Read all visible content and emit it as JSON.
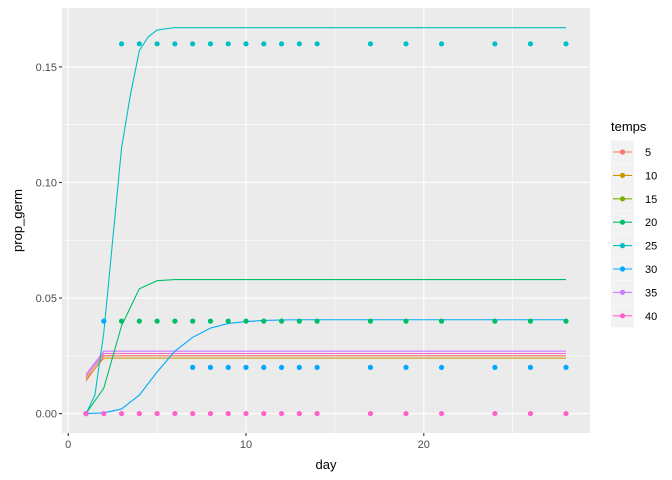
{
  "chart_data": {
    "type": "line",
    "xlabel": "day",
    "ylabel": "prop_germ",
    "xlim": [
      -0.35,
      29.35
    ],
    "ylim": [
      -0.0084,
      0.1755
    ],
    "x_ticks": [
      0,
      10,
      20
    ],
    "x_minor": [
      5,
      15,
      25
    ],
    "y_ticks": [
      0.0,
      0.05,
      0.1,
      0.15
    ],
    "y_tick_labels": [
      "0.00",
      "0.05",
      "0.10",
      "0.15"
    ],
    "y_minor": [
      0.025,
      0.075,
      0.125
    ],
    "grid": true,
    "legend": {
      "title": "temps",
      "position": "right"
    },
    "series": [
      {
        "name": "5",
        "color": "#F8766D",
        "points": {
          "x": [
            1
          ],
          "y": [
            0
          ]
        },
        "fit": {
          "x": [
            1,
            2,
            3,
            4,
            5,
            6,
            8,
            10,
            14,
            28
          ],
          "y": [
            0.014,
            0.025,
            0.025,
            0.025,
            0.025,
            0.025,
            0.025,
            0.025,
            0.025,
            0.025
          ]
        }
      },
      {
        "name": "10",
        "color": "#CD9600",
        "points": {
          "x": [
            1
          ],
          "y": [
            0
          ]
        },
        "fit": {
          "x": [
            1,
            2,
            3,
            4,
            5,
            6,
            8,
            10,
            14,
            28
          ],
          "y": [
            0.015,
            0.024,
            0.024,
            0.024,
            0.024,
            0.024,
            0.024,
            0.024,
            0.024,
            0.024
          ]
        }
      },
      {
        "name": "15",
        "color": "#7CAE00",
        "points": {
          "x": [
            1
          ],
          "y": [
            0
          ]
        },
        "fit": {
          "x": [
            1,
            2,
            3,
            4,
            5,
            6,
            8,
            10,
            14,
            28
          ],
          "y": [
            0.016,
            0.026,
            0.026,
            0.026,
            0.026,
            0.026,
            0.026,
            0.026,
            0.026,
            0.026
          ]
        }
      },
      {
        "name": "20",
        "color": "#00BE67",
        "points": {
          "x": [
            1,
            3,
            4,
            5,
            6,
            7,
            8,
            9,
            10,
            11,
            12,
            13,
            14,
            17,
            19,
            21,
            24,
            26,
            28
          ],
          "y": [
            0,
            0.04,
            0.04,
            0.04,
            0.04,
            0.04,
            0.04,
            0.04,
            0.04,
            0.04,
            0.04,
            0.04,
            0.04,
            0.04,
            0.04,
            0.04,
            0.04,
            0.04,
            0.04
          ]
        },
        "fit": {
          "x": [
            1,
            2,
            3,
            4,
            5,
            6,
            7,
            8,
            10,
            14,
            28
          ],
          "y": [
            0,
            0.011,
            0.038,
            0.054,
            0.0575,
            0.058,
            0.058,
            0.058,
            0.058,
            0.058,
            0.058
          ]
        }
      },
      {
        "name": "25",
        "color": "#00BFC4",
        "points": {
          "x": [
            1,
            3,
            4,
            5,
            6,
            7,
            8,
            9,
            10,
            11,
            12,
            13,
            14,
            17,
            19,
            21,
            24,
            26,
            28
          ],
          "y": [
            0,
            0.16,
            0.16,
            0.16,
            0.16,
            0.16,
            0.16,
            0.16,
            0.16,
            0.16,
            0.16,
            0.16,
            0.16,
            0.16,
            0.16,
            0.16,
            0.16,
            0.16,
            0.16
          ]
        },
        "fit": {
          "x": [
            1,
            1.5,
            2,
            2.5,
            3,
            3.5,
            4,
            4.5,
            5,
            6,
            7,
            10,
            14,
            28
          ],
          "y": [
            0,
            0.008,
            0.035,
            0.075,
            0.115,
            0.138,
            0.157,
            0.163,
            0.166,
            0.167,
            0.167,
            0.167,
            0.167,
            0.167
          ]
        }
      },
      {
        "name": "30",
        "color": "#00A9FF",
        "points": {
          "x": [
            2,
            7,
            8,
            9,
            10,
            11,
            12,
            13,
            14,
            17,
            19,
            21,
            24,
            26,
            28
          ],
          "y": [
            0.04,
            0.02,
            0.02,
            0.02,
            0.02,
            0.02,
            0.02,
            0.02,
            0.02,
            0.02,
            0.02,
            0.02,
            0.02,
            0.02,
            0.02
          ]
        },
        "fit": {
          "x": [
            1,
            2,
            3,
            4,
            5,
            6,
            7,
            8,
            9,
            10,
            11,
            12,
            13,
            14,
            16,
            20,
            28
          ],
          "y": [
            0,
            0.0003,
            0.002,
            0.008,
            0.018,
            0.027,
            0.033,
            0.037,
            0.039,
            0.0398,
            0.0403,
            0.0405,
            0.0406,
            0.0406,
            0.0406,
            0.0406,
            0.0406
          ]
        }
      },
      {
        "name": "35",
        "color": "#C77CFF",
        "points": {
          "x": [
            1
          ],
          "y": [
            0
          ]
        },
        "fit": {
          "x": [
            1,
            2,
            3,
            4,
            5,
            6,
            8,
            10,
            14,
            28
          ],
          "y": [
            0.017,
            0.027,
            0.027,
            0.027,
            0.027,
            0.027,
            0.027,
            0.027,
            0.027,
            0.027
          ]
        }
      },
      {
        "name": "40",
        "color": "#FF61CC",
        "points": {
          "x": [
            1,
            2,
            3,
            4,
            5,
            6,
            7,
            8,
            9,
            10,
            11,
            12,
            13,
            14,
            17,
            19,
            21,
            24,
            26,
            28
          ],
          "y": [
            0,
            0,
            0,
            0,
            0,
            0,
            0,
            0,
            0,
            0,
            0,
            0,
            0,
            0,
            0,
            0,
            0,
            0,
            0,
            0
          ]
        },
        "fit": {
          "x": [
            1,
            2,
            3,
            4,
            5,
            6,
            8,
            10,
            14,
            28
          ],
          "y": [
            0.016,
            0.026,
            0.026,
            0.026,
            0.026,
            0.026,
            0.026,
            0.026,
            0.026,
            0.026
          ]
        }
      }
    ]
  }
}
